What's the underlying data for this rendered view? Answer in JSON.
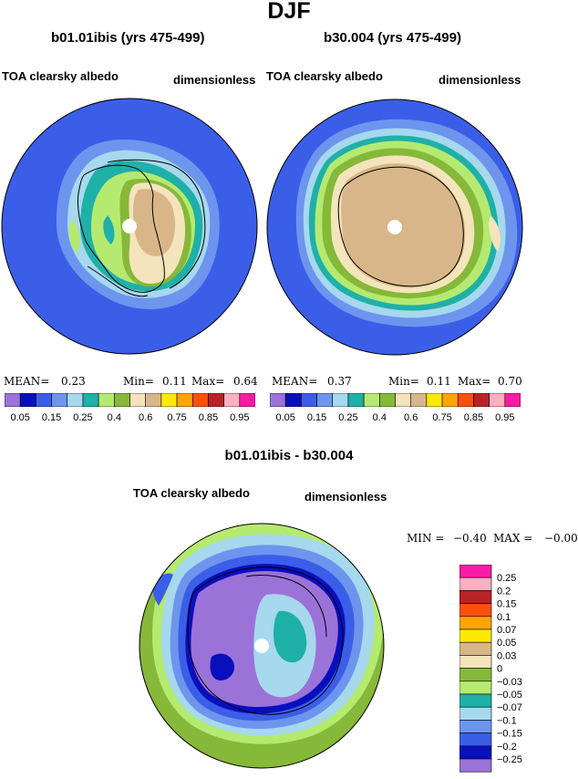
{
  "figure": {
    "title": "DJF"
  },
  "panels": [
    {
      "title": "b01.01ibis (yrs 475-499)",
      "left_label": "TOA clearsky albedo",
      "right_label": "dimensionless",
      "stats": {
        "mean_label": "MEAN=",
        "mean": "0.23",
        "min_label": "Min=",
        "min": "0.11",
        "max_label": "Max=",
        "max": "0.64"
      }
    },
    {
      "title": "b30.004 (yrs 475-499)",
      "left_label": "TOA clearsky albedo",
      "right_label": "dimensionless",
      "stats": {
        "mean_label": "MEAN=",
        "mean": "0.37",
        "min_label": "Min=",
        "min": "0.11",
        "max_label": "Max=",
        "max": "0.70"
      }
    },
    {
      "title": "b01.01ibis - b30.004",
      "left_label": "TOA clearsky albedo",
      "right_label": "dimensionless",
      "stats": {
        "min_label": "MIN =",
        "min": "−0.40",
        "max_label": "MAX =",
        "max": "−0.00"
      }
    }
  ],
  "colorbar_main": {
    "colors": [
      "#9b72d8",
      "#0a0fbe",
      "#3b5ee8",
      "#6d95ee",
      "#a6d8ee",
      "#1fb0a8",
      "#b5ea70",
      "#86b83a",
      "#f4e4bc",
      "#d8b689",
      "#fde900",
      "#ffa401",
      "#fb4f0e",
      "#b92326",
      "#ffafc0",
      "#fb1aa4"
    ],
    "tick_labels": [
      "0.05",
      "0.15",
      "0.25",
      "0.4",
      "0.6",
      "0.75",
      "0.85",
      "0.95"
    ]
  },
  "colorbar_diff": {
    "colors": [
      "#9b72d8",
      "#0a0fbe",
      "#3b5ee8",
      "#6d95ee",
      "#a6d8ee",
      "#1fb0a8",
      "#b5ea70",
      "#86b83a",
      "#f4e4bc",
      "#d8b689",
      "#fde900",
      "#ffa401",
      "#fb4f0e",
      "#b92326",
      "#ffafc0",
      "#fb1aa4"
    ],
    "tick_labels": [
      "−0.25",
      "−0.2",
      "−0.15",
      "−0.1",
      "−0.07",
      "−0.05",
      "−0.03",
      "0",
      "0.03",
      "0.05",
      "0.07",
      "0.1",
      "0.15",
      "0.2",
      "0.25"
    ]
  },
  "chart_data": [
    {
      "type": "heatmap",
      "title": "b01.01ibis (yrs 475-499)",
      "variable": "TOA clearsky albedo",
      "units": "dimensionless",
      "mean": 0.23,
      "min": 0.11,
      "max": 0.64
    },
    {
      "type": "heatmap",
      "title": "b30.004 (yrs 475-499)",
      "variable": "TOA clearsky albedo",
      "units": "dimensionless",
      "mean": 0.37,
      "min": 0.11,
      "max": 0.7
    },
    {
      "type": "heatmap",
      "title": "b01.01ibis - b30.004",
      "variable": "TOA clearsky albedo",
      "units": "dimensionless",
      "min": -0.4,
      "max": -0.0
    }
  ]
}
